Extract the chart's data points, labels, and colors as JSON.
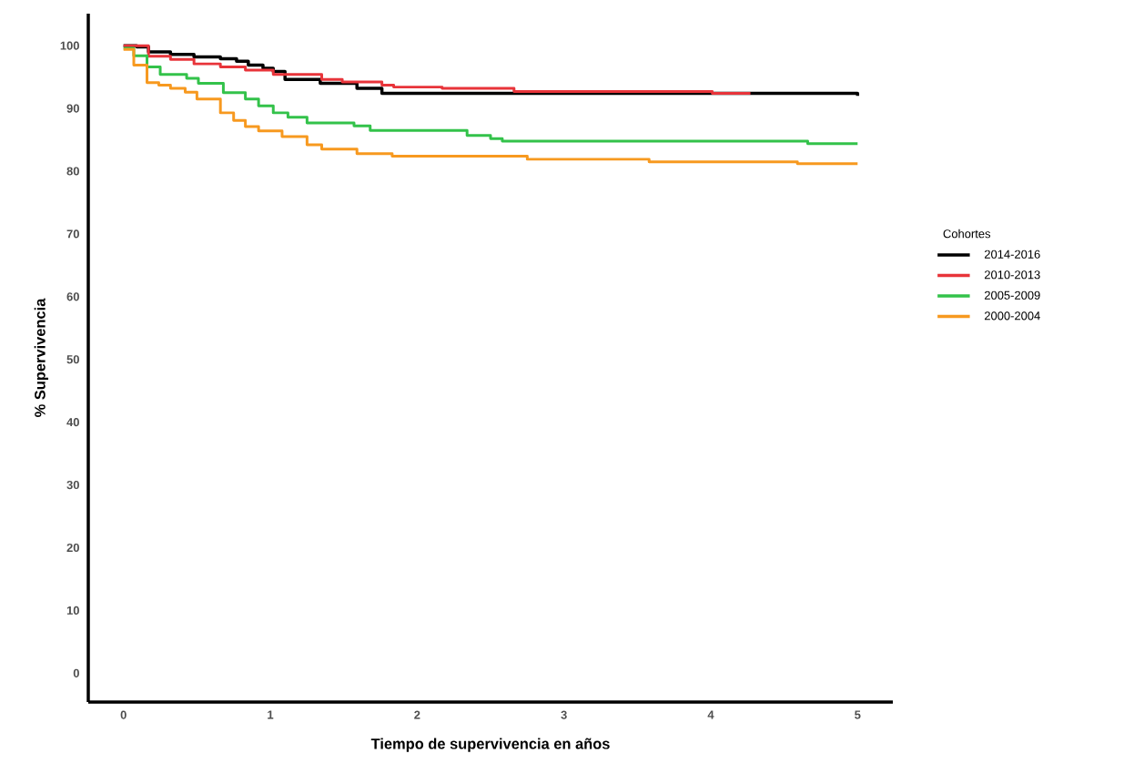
{
  "chart_data": {
    "type": "step",
    "xlabel": "Tiempo de supervivencia en años",
    "ylabel": "% Supervivencia",
    "legend_title": "Cohortes",
    "legend": "right",
    "xlim": [
      -0.24,
      5.24
    ],
    "ylim": [
      -4.6,
      105.1
    ],
    "xticks": [
      0,
      1,
      2,
      3,
      4,
      5
    ],
    "yticks": [
      0,
      10,
      20,
      30,
      40,
      50,
      60,
      70,
      80,
      90,
      100
    ],
    "series": [
      {
        "name": "2014-2016",
        "color": "#000000",
        "x": [
          0,
          0.09,
          0.17,
          0.32,
          0.48,
          0.66,
          0.77,
          0.85,
          0.95,
          1.02,
          1.1,
          1.34,
          1.59,
          1.76,
          5
        ],
        "values": [
          100,
          99.8,
          99.0,
          98.6,
          98.2,
          97.9,
          97.5,
          96.9,
          96.4,
          95.9,
          94.6,
          94.0,
          93.2,
          92.4,
          92.0
        ]
      },
      {
        "name": "2010-2013",
        "color": "#e8343a",
        "x": [
          0,
          0.17,
          0.32,
          0.48,
          0.66,
          0.83,
          1.02,
          1.35,
          1.49,
          1.76,
          1.84,
          2.17,
          2.66,
          4.01,
          4.27
        ],
        "values": [
          100,
          98.3,
          97.8,
          97.1,
          96.6,
          96.1,
          95.4,
          94.6,
          94.2,
          93.7,
          93.4,
          93.2,
          92.7,
          92.4,
          92.4
        ]
      },
      {
        "name": "2005-2009",
        "color": "#33c24a",
        "x": [
          0,
          0.07,
          0.16,
          0.25,
          0.43,
          0.51,
          0.68,
          0.83,
          0.92,
          1.02,
          1.12,
          1.25,
          1.57,
          1.68,
          2.34,
          2.5,
          2.58,
          4.66,
          5
        ],
        "values": [
          99.6,
          98.4,
          96.6,
          95.4,
          94.8,
          94.0,
          92.5,
          91.5,
          90.4,
          89.3,
          88.6,
          87.7,
          87.2,
          86.5,
          85.7,
          85.2,
          84.8,
          84.4,
          84.4
        ]
      },
      {
        "name": "2000-2004",
        "color": "#f7991f",
        "x": [
          0,
          0.07,
          0.16,
          0.24,
          0.32,
          0.42,
          0.5,
          0.66,
          0.75,
          0.83,
          0.92,
          1.08,
          1.25,
          1.35,
          1.59,
          1.83,
          2.75,
          3.58,
          4.59,
          5
        ],
        "values": [
          99.4,
          96.9,
          94.1,
          93.7,
          93.2,
          92.6,
          91.5,
          89.3,
          88.1,
          87.1,
          86.4,
          85.5,
          84.2,
          83.5,
          82.8,
          82.4,
          81.9,
          81.5,
          81.2,
          81.2
        ]
      }
    ]
  }
}
